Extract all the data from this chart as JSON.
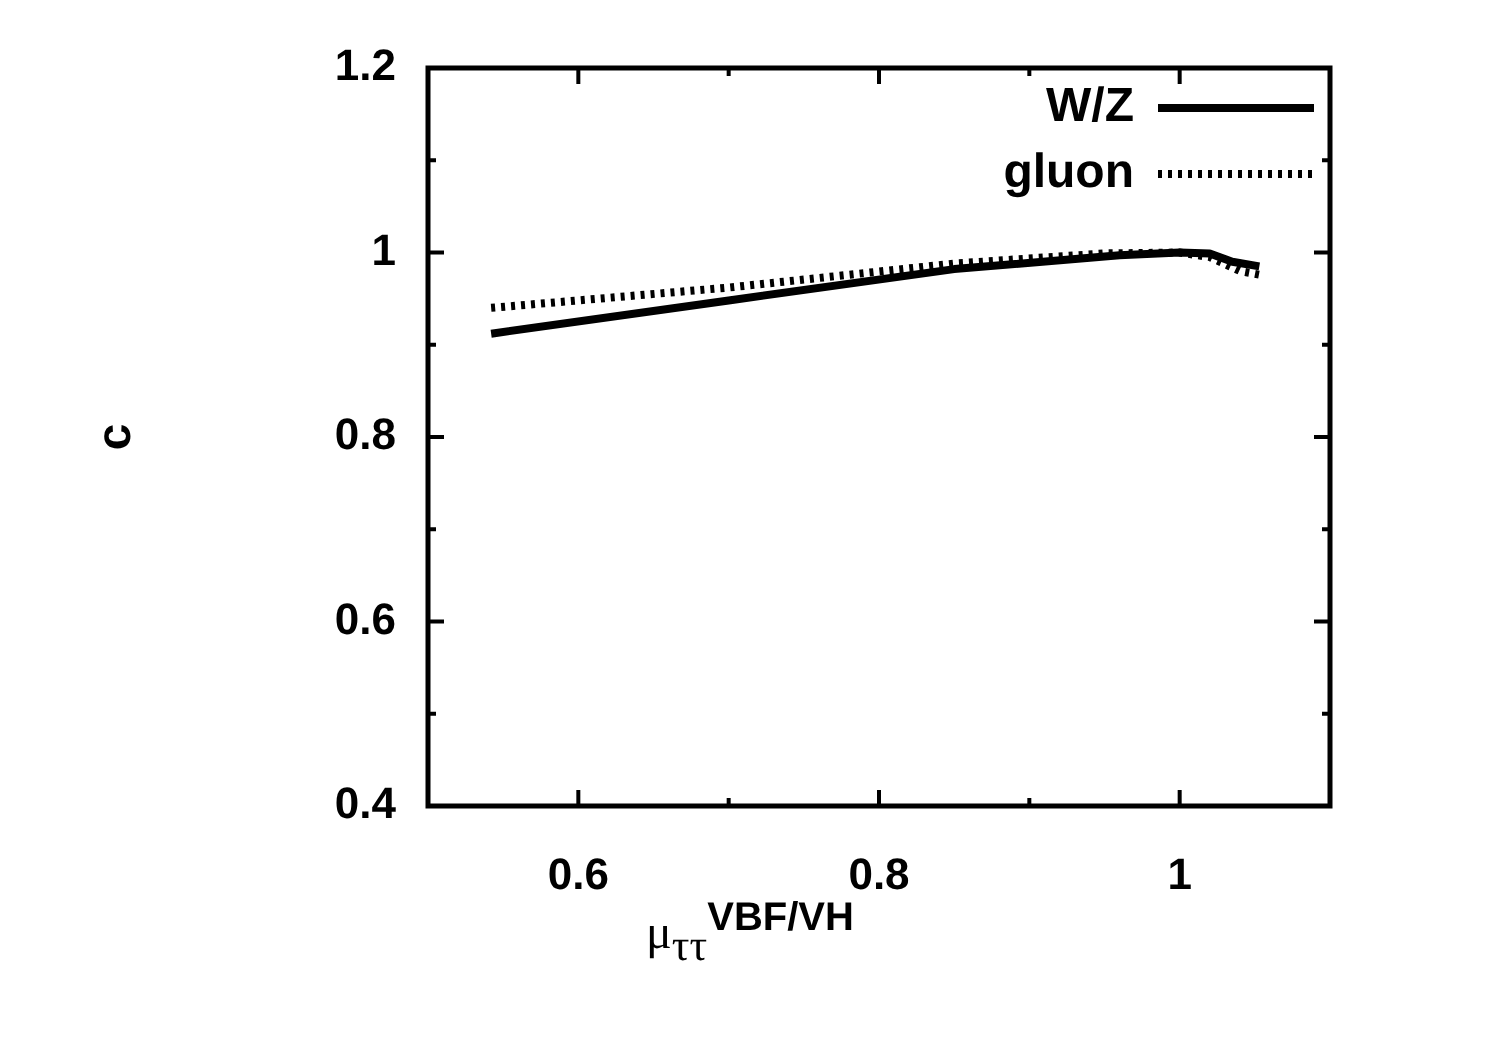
{
  "chart_data": {
    "type": "line",
    "xlabel": "μ$_{ττ}$$^{VBF/VH}$",
    "ylabel": "c",
    "xlim": [
      0.5,
      1.1
    ],
    "xticks": [
      {
        "value": 0.5,
        "label": null
      },
      0.6,
      {
        "value": 0.7,
        "label": null
      },
      0.8,
      {
        "value": 0.9,
        "label": null
      },
      1,
      {
        "value": 1.1,
        "label": null
      }
    ],
    "ylim": [
      0.4,
      1.2
    ],
    "yticks": [
      0.4,
      {
        "value": 0.5,
        "label": null
      },
      0.6,
      {
        "value": 0.7,
        "label": null
      },
      0.8,
      {
        "value": 0.9,
        "label": null
      },
      1,
      {
        "value": 1.1,
        "label": null
      },
      1.2
    ],
    "grid": false,
    "legend": "top right",
    "marker": "none",
    "series": [
      {
        "name": "W/Z",
        "color": "#000000",
        "line_style": "solid",
        "x": [
          0.542,
          0.7,
          0.85,
          0.96,
          1.0,
          1.02,
          1.035,
          1.053
        ],
        "values": [
          0.912,
          0.948,
          0.982,
          0.997,
          1.0,
          0.999,
          0.99,
          0.985
        ]
      },
      {
        "name": "gluon",
        "color": "#000000",
        "line_style": "dotted",
        "x": [
          0.542,
          0.7,
          0.85,
          0.95,
          1.0,
          1.02,
          1.04,
          1.053
        ],
        "values": [
          0.94,
          0.962,
          0.988,
          0.999,
          1.0,
          0.995,
          0.98,
          0.976
        ]
      }
    ]
  }
}
